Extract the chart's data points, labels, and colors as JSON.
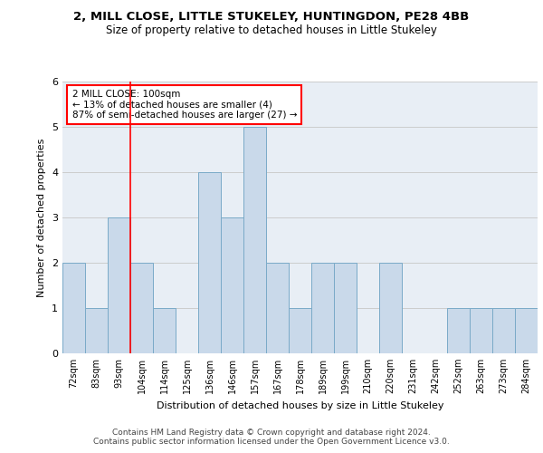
{
  "title": "2, MILL CLOSE, LITTLE STUKELEY, HUNTINGDON, PE28 4BB",
  "subtitle": "Size of property relative to detached houses in Little Stukeley",
  "xlabel": "Distribution of detached houses by size in Little Stukeley",
  "ylabel": "Number of detached properties",
  "footer_line1": "Contains HM Land Registry data © Crown copyright and database right 2024.",
  "footer_line2": "Contains public sector information licensed under the Open Government Licence v3.0.",
  "categories": [
    "72sqm",
    "83sqm",
    "93sqm",
    "104sqm",
    "114sqm",
    "125sqm",
    "136sqm",
    "146sqm",
    "157sqm",
    "167sqm",
    "178sqm",
    "189sqm",
    "199sqm",
    "210sqm",
    "220sqm",
    "231sqm",
    "242sqm",
    "252sqm",
    "263sqm",
    "273sqm",
    "284sqm"
  ],
  "values": [
    2,
    1,
    3,
    2,
    1,
    0,
    4,
    3,
    5,
    2,
    1,
    2,
    2,
    0,
    2,
    0,
    0,
    1,
    1,
    1,
    1
  ],
  "bar_color": "#c9d9ea",
  "bar_edgecolor": "#7aaac8",
  "bar_linewidth": 0.7,
  "property_line_color": "red",
  "property_line_bar_index": 3,
  "annotation_text": "2 MILL CLOSE: 100sqm\n← 13% of detached houses are smaller (4)\n87% of semi-detached houses are larger (27) →",
  "annotation_box_color": "white",
  "annotation_box_edgecolor": "red",
  "ylim": [
    0,
    6
  ],
  "yticks": [
    0,
    1,
    2,
    3,
    4,
    5,
    6
  ],
  "grid_color": "#cccccc",
  "background_color": "#e8eef5",
  "title_fontsize": 9.5,
  "subtitle_fontsize": 8.5,
  "xlabel_fontsize": 8,
  "ylabel_fontsize": 8,
  "tick_fontsize": 7,
  "annotation_fontsize": 7.5,
  "footer_fontsize": 6.5
}
